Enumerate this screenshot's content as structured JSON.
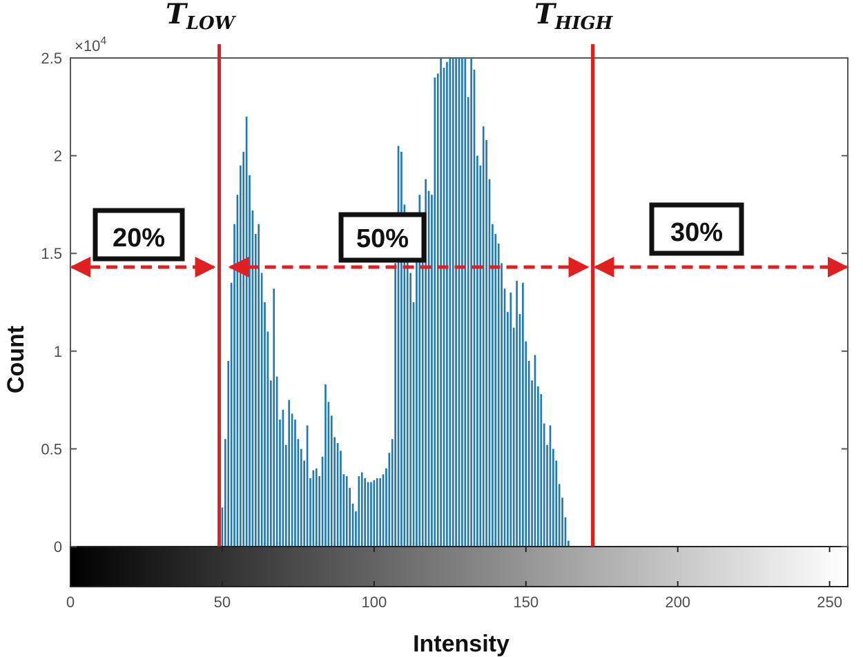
{
  "chart_data": {
    "type": "bar",
    "xlabel": "Intensity",
    "ylabel": "Count",
    "y_exponent_label": "×10",
    "y_exponent_power": "4",
    "xlim": [
      0,
      256
    ],
    "ylim": [
      0,
      25000
    ],
    "x_ticks": [
      0,
      50,
      100,
      150,
      200,
      250
    ],
    "x_tick_labels": [
      "0",
      "50",
      "100",
      "150",
      "200",
      "250"
    ],
    "y_ticks": [
      0,
      5000,
      10000,
      15000,
      20000,
      25000
    ],
    "y_tick_labels": [
      "0",
      "0.5",
      "1",
      "1.5",
      "2",
      "2.5"
    ],
    "grid": false,
    "colorbar": "grayscale 0-255",
    "bar_color": "#1f77b4",
    "threshold_color": "#e02020",
    "x": [
      49,
      50,
      51,
      52,
      53,
      54,
      55,
      56,
      57,
      58,
      59,
      60,
      61,
      62,
      63,
      64,
      65,
      66,
      67,
      68,
      69,
      70,
      71,
      72,
      73,
      74,
      75,
      76,
      77,
      78,
      79,
      80,
      81,
      82,
      83,
      84,
      85,
      86,
      87,
      88,
      89,
      90,
      91,
      92,
      93,
      94,
      95,
      96,
      97,
      98,
      99,
      100,
      101,
      102,
      103,
      104,
      105,
      106,
      107,
      108,
      109,
      110,
      111,
      112,
      113,
      114,
      115,
      116,
      117,
      118,
      119,
      120,
      121,
      122,
      123,
      124,
      125,
      126,
      127,
      128,
      129,
      130,
      131,
      132,
      133,
      134,
      135,
      136,
      137,
      138,
      139,
      140,
      141,
      142,
      143,
      144,
      145,
      146,
      147,
      148,
      149,
      150,
      151,
      152,
      153,
      154,
      155,
      156,
      157,
      158,
      159,
      160,
      161,
      162,
      163,
      164
    ],
    "values": [
      300,
      2000,
      5500,
      9500,
      13500,
      16500,
      18000,
      19500,
      20200,
      22000,
      19000,
      17200,
      16000,
      16500,
      14000,
      12500,
      11000,
      8500,
      13200,
      8700,
      6500,
      7000,
      5200,
      7500,
      6800,
      6500,
      5500,
      5000,
      4400,
      6200,
      3500,
      3900,
      4000,
      3600,
      4600,
      8300,
      7400,
      6700,
      5600,
      5300,
      4900,
      3700,
      3600,
      3000,
      2200,
      1800,
      3600,
      3800,
      3500,
      3300,
      3300,
      3400,
      3500,
      3500,
      3700,
      4000,
      4800,
      5500,
      14500,
      20500,
      20200,
      17500,
      16000,
      14000,
      12500,
      17000,
      18000,
      17000,
      18800,
      18200,
      18000,
      24000,
      24200,
      25000,
      24500,
      24800,
      25000,
      25000,
      25000,
      25000,
      25000,
      25000,
      23000,
      25000,
      24400,
      20000,
      19500,
      21500,
      20800,
      18800,
      16500,
      16000,
      15500,
      14500,
      13200,
      12000,
      13000,
      11200,
      13600,
      11900,
      13500,
      10500,
      9500,
      8500,
      9800,
      8200,
      7800,
      6300,
      5200,
      6200,
      5000,
      4400,
      3200,
      2500,
      1500,
      300
    ]
  },
  "annotations": {
    "t_low": {
      "value": 49,
      "main": "T",
      "sub": "LOW",
      "region_pct": "20%"
    },
    "t_high": {
      "value": 172,
      "main": "T",
      "sub": "HIGH",
      "region_pct_mid": "50%",
      "region_pct_high": "30%"
    },
    "arrow_level": 14300
  }
}
